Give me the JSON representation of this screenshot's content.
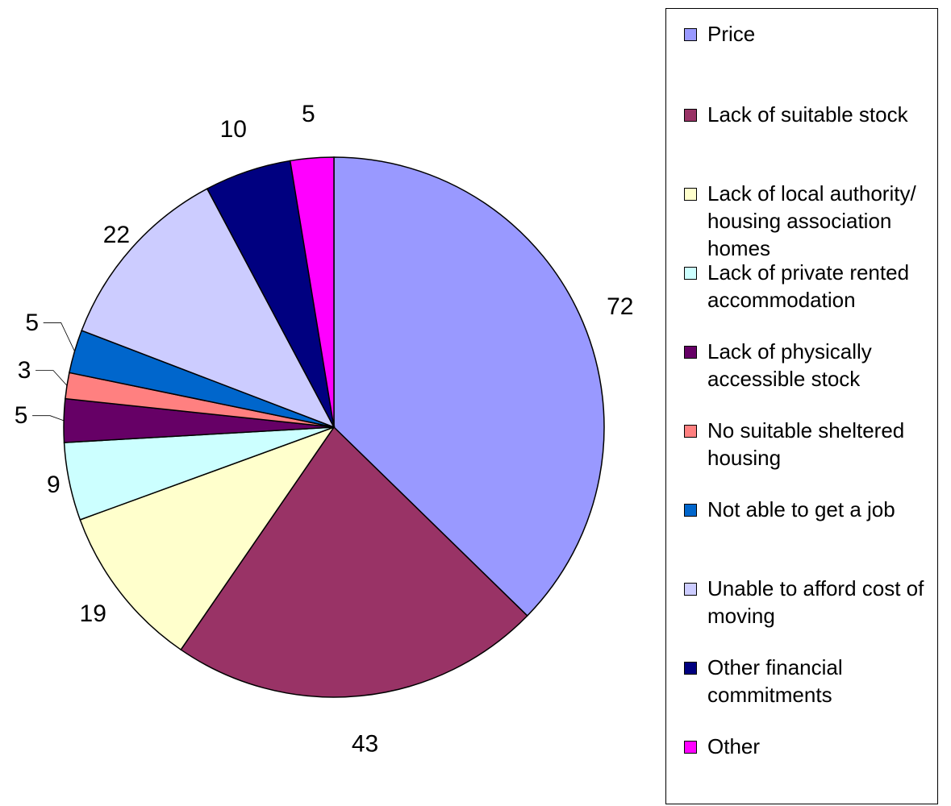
{
  "chart_data": {
    "type": "pie",
    "title": "",
    "slices": [
      {
        "label": "Price",
        "value": 72,
        "color": "#9999ff"
      },
      {
        "label": "Lack of suitable stock",
        "value": 43,
        "color": "#993366"
      },
      {
        "label": "Lack of local authority/\nhousing association\nhomes",
        "value": 19,
        "color": "#ffffcc"
      },
      {
        "label": "Lack of private rented\naccommodation",
        "value": 9,
        "color": "#ccffff"
      },
      {
        "label": "Lack of physically\naccessible stock",
        "value": 5,
        "color": "#660066"
      },
      {
        "label": "No suitable sheltered\nhousing",
        "value": 3,
        "color": "#ff8080"
      },
      {
        "label": "Not able to get a job",
        "value": 5,
        "color": "#0066cc"
      },
      {
        "label": "Unable to afford cost of\nmoving",
        "value": 22,
        "color": "#ccccff"
      },
      {
        "label": "Other financial\ncommitments",
        "value": 10,
        "color": "#000080"
      },
      {
        "label": "Other",
        "value": 5,
        "color": "#ff00ff"
      }
    ],
    "legend_position": "right"
  }
}
